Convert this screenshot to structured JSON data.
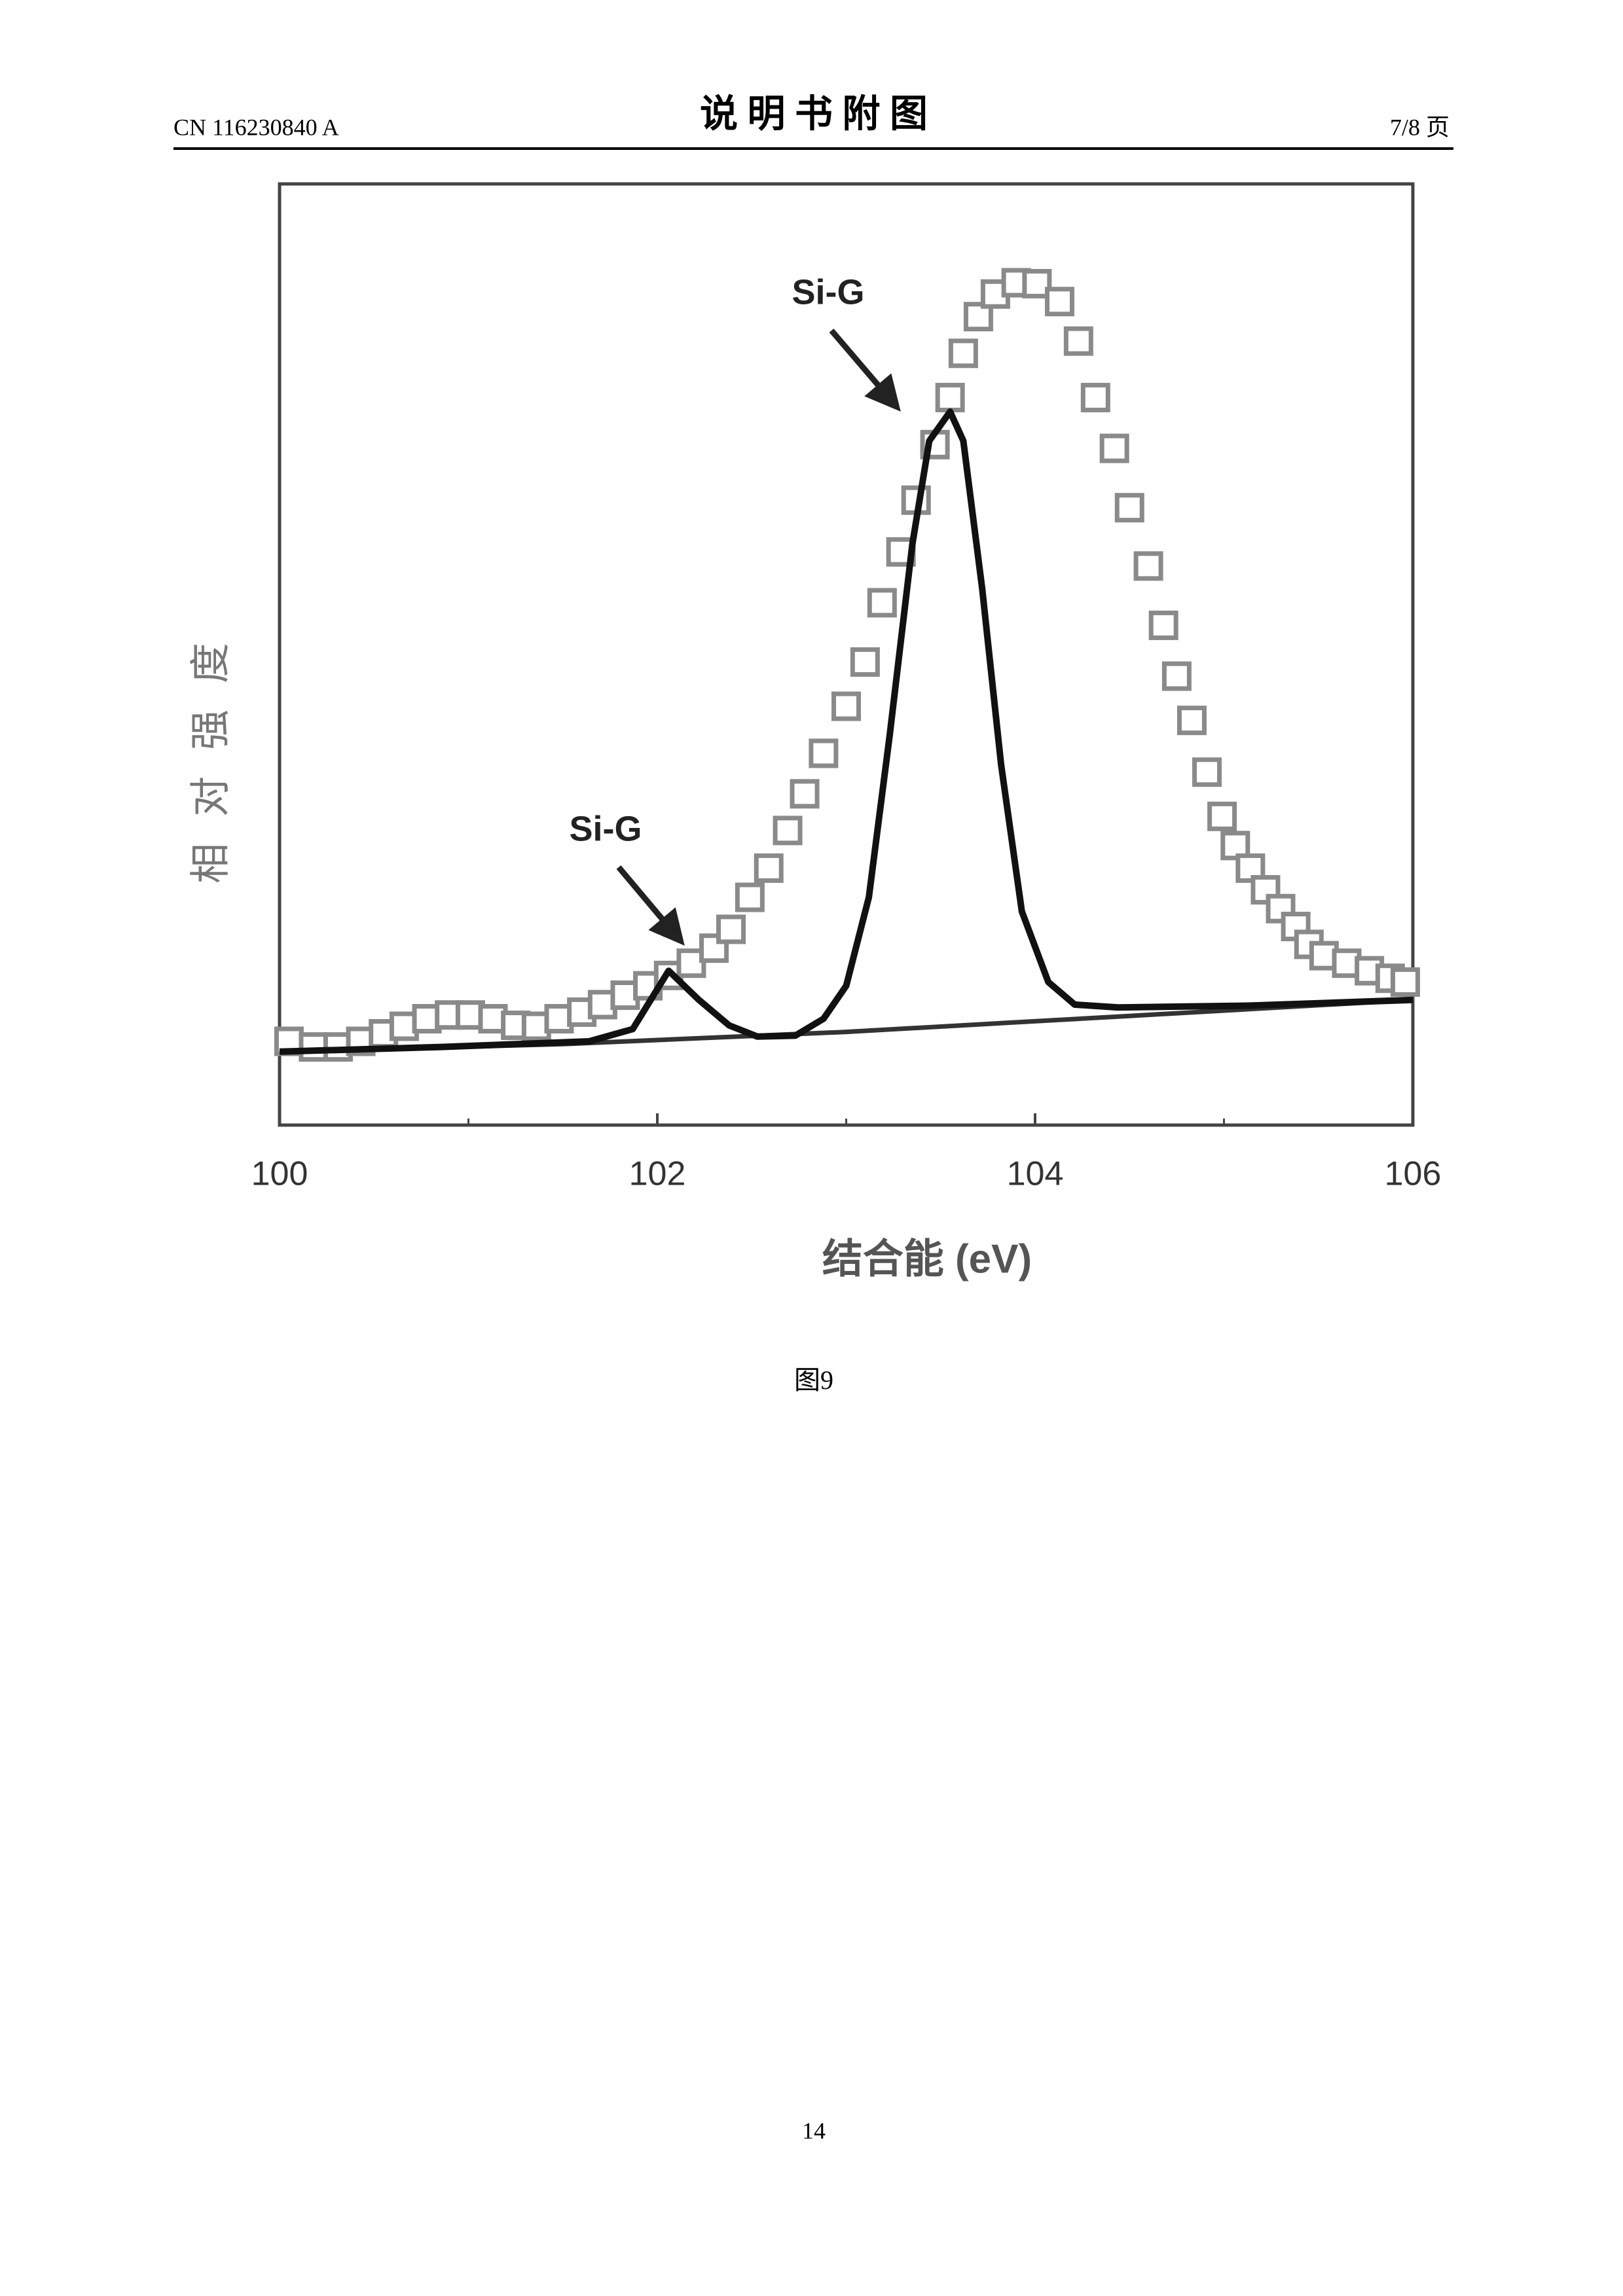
{
  "header": {
    "left": "CN 116230840 A",
    "title": "说 明 书 附 图",
    "right": "7/8 页"
  },
  "chart_data": {
    "type": "scatter-line",
    "x_label": "结合能  (eV)",
    "y_label": "相对强度",
    "xlim": [
      100,
      106
    ],
    "xticks": [
      100,
      102,
      104,
      106
    ],
    "xminorticks": [
      101,
      103,
      105
    ],
    "ylim": [
      0,
      100
    ],
    "annotations": [
      "Si-G",
      "Si-G"
    ],
    "series": [
      {
        "marker": "square",
        "color": "#8a8a8a",
        "x": [
          100.05,
          100.18,
          100.31,
          100.43,
          100.55,
          100.66,
          100.78,
          100.9,
          101.01,
          101.13,
          101.25,
          101.36,
          101.48,
          101.6,
          101.71,
          101.83,
          101.95,
          102.06,
          102.18,
          102.3,
          102.39,
          102.49,
          102.59,
          102.69,
          102.78,
          102.88,
          103.0,
          103.1,
          103.19,
          103.29,
          103.37,
          103.47,
          103.55,
          103.62,
          103.7,
          103.79,
          103.9,
          104.01,
          104.13,
          104.23,
          104.32,
          104.42,
          104.5,
          104.6,
          104.68,
          104.75,
          104.83,
          104.91,
          104.99,
          105.06,
          105.14,
          105.22,
          105.3,
          105.38,
          105.45,
          105.53,
          105.65,
          105.77,
          105.88,
          105.96
        ],
        "values": [
          8.9,
          8.3,
          8.3,
          8.9,
          9.7,
          10.5,
          11.3,
          11.7,
          11.7,
          11.3,
          10.6,
          10.5,
          11.3,
          12.0,
          12.8,
          13.8,
          14.8,
          15.9,
          17.2,
          18.8,
          20.8,
          24.2,
          27.3,
          31.3,
          35.2,
          39.5,
          44.5,
          49.2,
          55.5,
          60.9,
          66.4,
          72.3,
          77.3,
          82.0,
          85.9,
          88.3,
          89.5,
          89.4,
          87.5,
          83.3,
          77.3,
          71.9,
          65.6,
          59.4,
          53.1,
          47.7,
          43.0,
          37.5,
          32.8,
          29.7,
          27.3,
          25.0,
          23.0,
          21.1,
          19.2,
          18.0,
          17.2,
          16.4,
          15.6,
          15.2
        ]
      },
      {
        "marker": "none",
        "color": "#111111",
        "x": [
          100.0,
          100.86,
          101.64,
          101.87,
          102.06,
          102.22,
          102.38,
          102.53,
          102.73,
          102.88,
          103.0,
          103.12,
          103.23,
          103.35,
          103.44,
          103.55,
          103.62,
          103.72,
          103.82,
          103.93,
          104.07,
          104.21,
          104.44,
          105.14,
          106.0
        ],
        "values": [
          7.8,
          8.3,
          8.9,
          10.2,
          16.4,
          13.3,
          10.6,
          9.4,
          9.5,
          11.3,
          14.8,
          24.2,
          41.4,
          61.7,
          72.7,
          75.8,
          72.7,
          57.0,
          38.3,
          22.7,
          15.2,
          12.8,
          12.5,
          12.7,
          13.3
        ]
      },
      {
        "marker": "none",
        "color": "#333333",
        "x": [
          100.0,
          101.5,
          103.0,
          104.5,
          106.0
        ],
        "values": [
          7.8,
          8.6,
          9.9,
          11.6,
          13.3
        ]
      }
    ]
  },
  "caption": "图9",
  "page_number": "14"
}
